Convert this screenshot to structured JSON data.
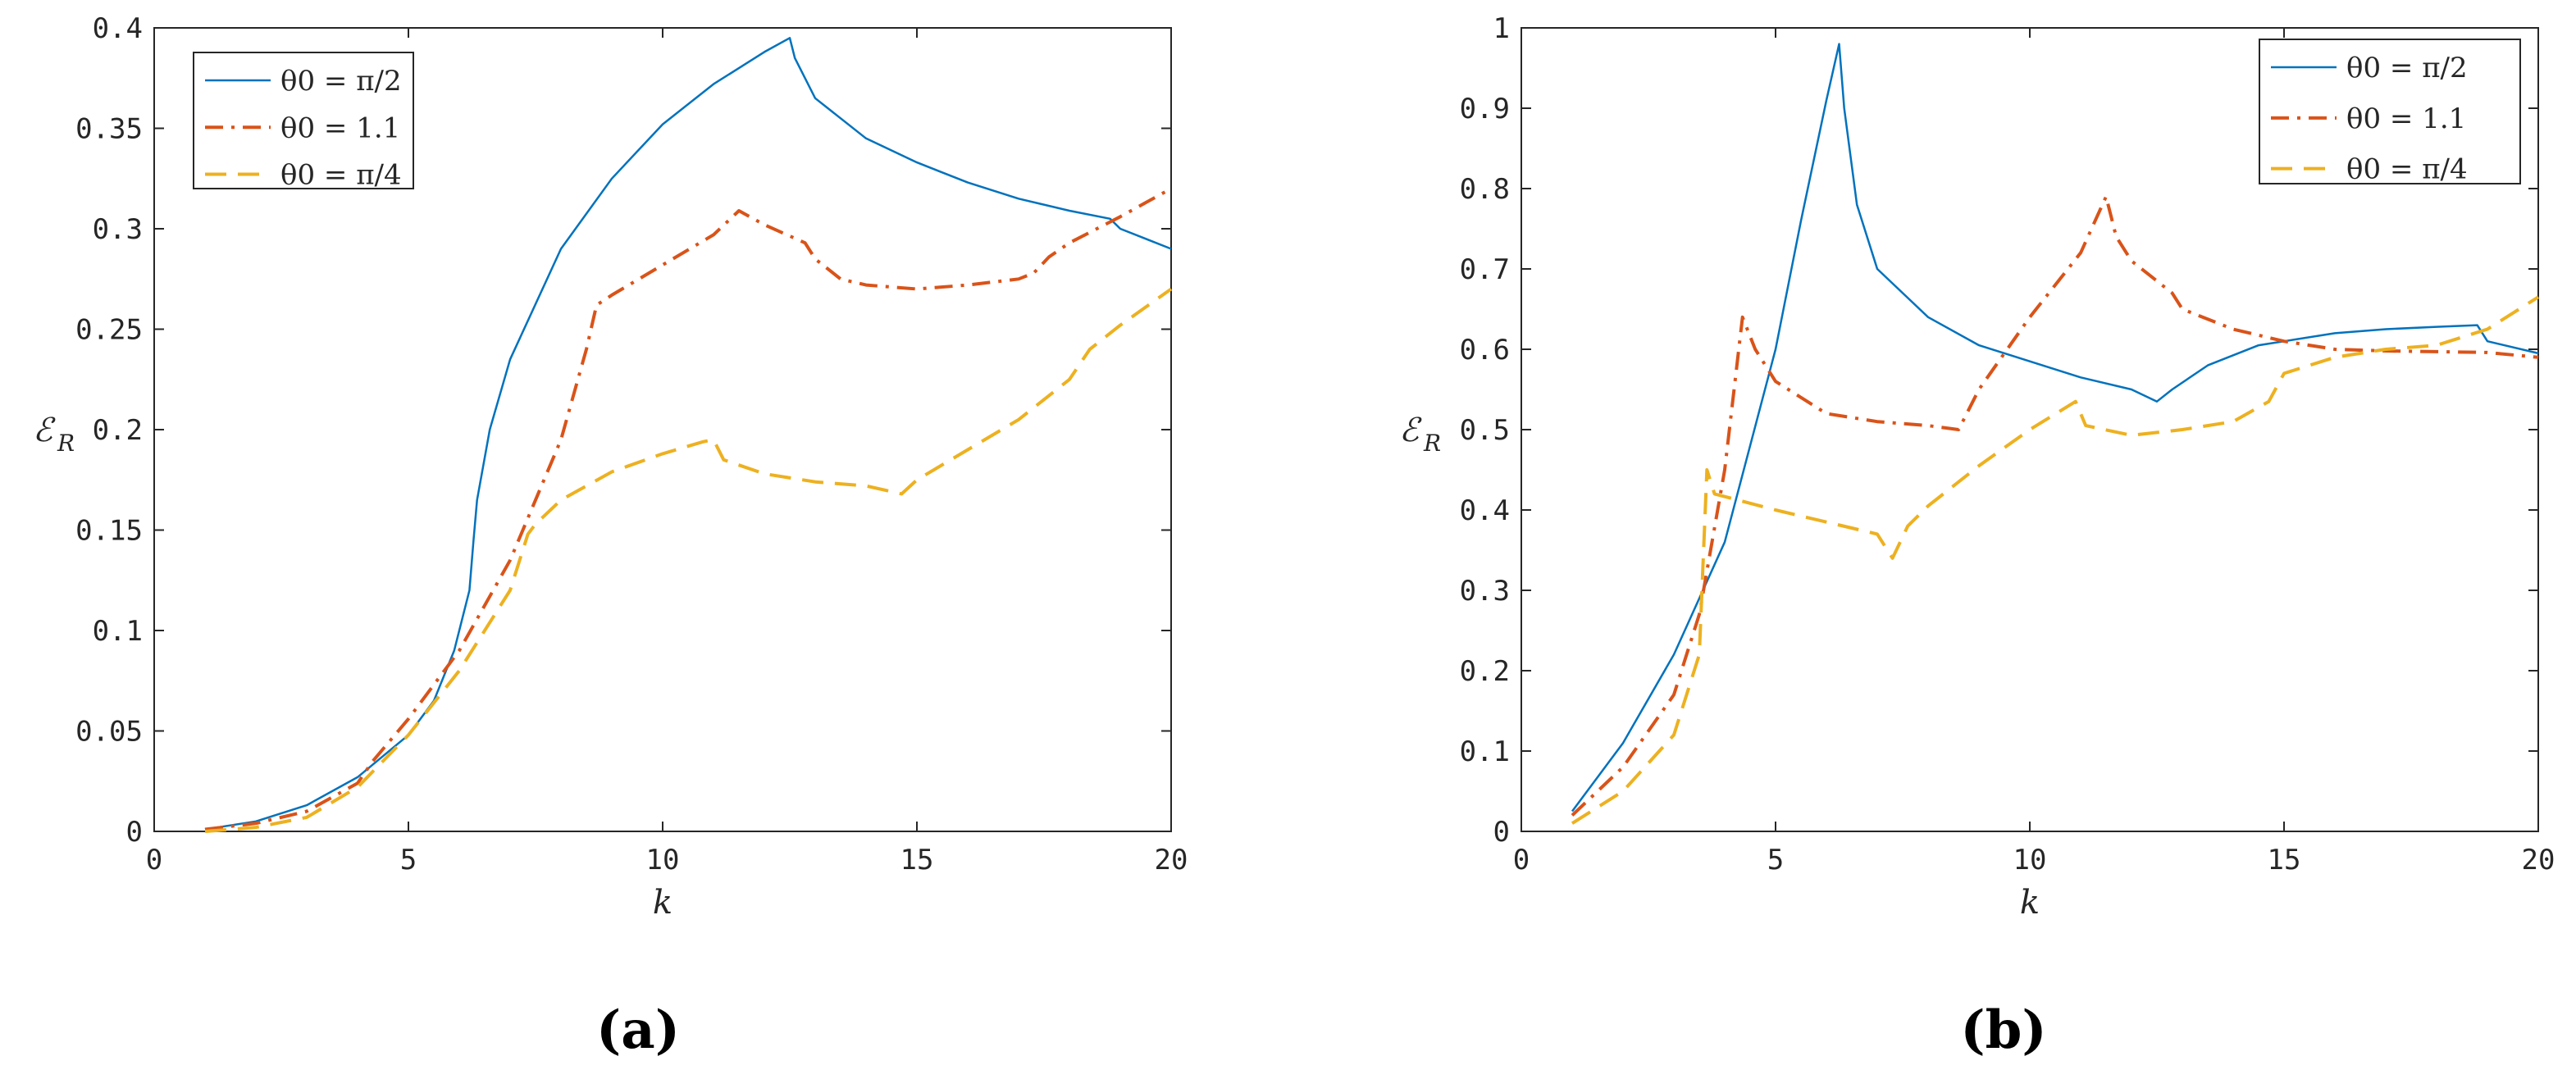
{
  "figure": {
    "panels": [
      {
        "label": "(a)",
        "ylabel_main": "ℰ",
        "ylabel_sub": "R",
        "xlabel": "k"
      },
      {
        "label": "(b)",
        "ylabel_main": "ℰ",
        "ylabel_sub": "R",
        "xlabel": "k"
      }
    ]
  },
  "chart_data": [
    {
      "type": "line",
      "panel": "(a)",
      "xlabel": "k",
      "ylabel": "ℰR",
      "xlim": [
        0,
        20
      ],
      "ylim": [
        0,
        0.4
      ],
      "xticks": [
        0,
        5,
        10,
        15,
        20
      ],
      "yticks": [
        0,
        0.05,
        0.1,
        0.15,
        0.2,
        0.25,
        0.3,
        0.35,
        0.4
      ],
      "xtick_labels": [
        "0",
        "5",
        "10",
        "15",
        "20"
      ],
      "ytick_labels": [
        "0",
        "0.05",
        "0.1",
        "0.15",
        "0.2",
        "0.25",
        "0.3",
        "0.35",
        "0.4"
      ],
      "grid": false,
      "legend_position": "top-left",
      "series": [
        {
          "name": "θ0 = π/2",
          "color": "#0072BD",
          "style": "solid",
          "points": [
            [
              1,
              0.001
            ],
            [
              2,
              0.005
            ],
            [
              3,
              0.013
            ],
            [
              4,
              0.027
            ],
            [
              5,
              0.048
            ],
            [
              5.5,
              0.065
            ],
            [
              5.9,
              0.09
            ],
            [
              6.2,
              0.12
            ],
            [
              6.28,
              0.145
            ],
            [
              6.35,
              0.165
            ],
            [
              6.6,
              0.2
            ],
            [
              7,
              0.235
            ],
            [
              8,
              0.29
            ],
            [
              9,
              0.325
            ],
            [
              10,
              0.352
            ],
            [
              11,
              0.372
            ],
            [
              12,
              0.388
            ],
            [
              12.5,
              0.395
            ],
            [
              12.6,
              0.385
            ],
            [
              13,
              0.365
            ],
            [
              14,
              0.345
            ],
            [
              15,
              0.333
            ],
            [
              16,
              0.323
            ],
            [
              17,
              0.315
            ],
            [
              18,
              0.309
            ],
            [
              18.8,
              0.305
            ],
            [
              19,
              0.3
            ],
            [
              20,
              0.29
            ]
          ]
        },
        {
          "name": "θ0 = 1.1",
          "color": "#D95319",
          "style": "dashdot",
          "points": [
            [
              1,
              0.001
            ],
            [
              2,
              0.004
            ],
            [
              3,
              0.01
            ],
            [
              4,
              0.024
            ],
            [
              4.3,
              0.035
            ],
            [
              5,
              0.056
            ],
            [
              6,
              0.09
            ],
            [
              7,
              0.135
            ],
            [
              8,
              0.195
            ],
            [
              8.5,
              0.24
            ],
            [
              8.7,
              0.262
            ],
            [
              9,
              0.267
            ],
            [
              10,
              0.282
            ],
            [
              11,
              0.297
            ],
            [
              11.5,
              0.309
            ],
            [
              12,
              0.302
            ],
            [
              12.8,
              0.293
            ],
            [
              13,
              0.285
            ],
            [
              13.5,
              0.275
            ],
            [
              14,
              0.272
            ],
            [
              15,
              0.27
            ],
            [
              16,
              0.272
            ],
            [
              17,
              0.275
            ],
            [
              17.3,
              0.278
            ],
            [
              17.6,
              0.286
            ],
            [
              18,
              0.293
            ],
            [
              19,
              0.306
            ],
            [
              20,
              0.32
            ]
          ]
        },
        {
          "name": "θ0 = π/4",
          "color": "#EDB120",
          "style": "dashed",
          "points": [
            [
              1,
              0.0
            ],
            [
              2,
              0.002
            ],
            [
              3,
              0.007
            ],
            [
              4,
              0.022
            ],
            [
              5,
              0.048
            ],
            [
              6,
              0.08
            ],
            [
              7,
              0.12
            ],
            [
              7.35,
              0.148
            ],
            [
              7.5,
              0.153
            ],
            [
              8,
              0.165
            ],
            [
              9,
              0.179
            ],
            [
              10,
              0.188
            ],
            [
              10.8,
              0.194
            ],
            [
              11,
              0.195
            ],
            [
              11.2,
              0.185
            ],
            [
              12,
              0.178
            ],
            [
              13,
              0.174
            ],
            [
              14,
              0.172
            ],
            [
              14.7,
              0.168
            ],
            [
              15,
              0.175
            ],
            [
              16,
              0.19
            ],
            [
              17,
              0.205
            ],
            [
              18,
              0.225
            ],
            [
              18.4,
              0.24
            ],
            [
              19,
              0.252
            ],
            [
              20,
              0.27
            ]
          ]
        }
      ]
    },
    {
      "type": "line",
      "panel": "(b)",
      "xlabel": "k",
      "ylabel": "ℰR",
      "xlim": [
        0,
        20
      ],
      "ylim": [
        0,
        1
      ],
      "xticks": [
        0,
        5,
        10,
        15,
        20
      ],
      "yticks": [
        0,
        0.1,
        0.2,
        0.3,
        0.4,
        0.5,
        0.6,
        0.7,
        0.8,
        0.9,
        1
      ],
      "xtick_labels": [
        "0",
        "5",
        "10",
        "15",
        "20"
      ],
      "ytick_labels": [
        "0",
        "0.1",
        "0.2",
        "0.3",
        "0.4",
        "0.5",
        "0.6",
        "0.7",
        "0.8",
        "0.9",
        "1"
      ],
      "grid": false,
      "legend_position": "top-right",
      "series": [
        {
          "name": "θ0 = π/2",
          "color": "#0072BD",
          "style": "solid",
          "points": [
            [
              1,
              0.025
            ],
            [
              2,
              0.11
            ],
            [
              3,
              0.22
            ],
            [
              4,
              0.36
            ],
            [
              5,
              0.6
            ],
            [
              5.5,
              0.76
            ],
            [
              6,
              0.91
            ],
            [
              6.25,
              0.98
            ],
            [
              6.35,
              0.9
            ],
            [
              6.6,
              0.78
            ],
            [
              7,
              0.7
            ],
            [
              8,
              0.64
            ],
            [
              9,
              0.605
            ],
            [
              10,
              0.585
            ],
            [
              11,
              0.565
            ],
            [
              12,
              0.55
            ],
            [
              12.5,
              0.535
            ],
            [
              12.8,
              0.55
            ],
            [
              13.5,
              0.58
            ],
            [
              14.5,
              0.605
            ],
            [
              16,
              0.62
            ],
            [
              17,
              0.625
            ],
            [
              18,
              0.628
            ],
            [
              18.8,
              0.63
            ],
            [
              19,
              0.61
            ],
            [
              20,
              0.595
            ]
          ]
        },
        {
          "name": "θ0 = 1.1",
          "color": "#D95319",
          "style": "dashdot",
          "points": [
            [
              1,
              0.02
            ],
            [
              2,
              0.08
            ],
            [
              3,
              0.17
            ],
            [
              3.5,
              0.27
            ],
            [
              4,
              0.45
            ],
            [
              4.35,
              0.64
            ],
            [
              4.6,
              0.6
            ],
            [
              5,
              0.56
            ],
            [
              6,
              0.52
            ],
            [
              7,
              0.51
            ],
            [
              8,
              0.505
            ],
            [
              8.6,
              0.5
            ],
            [
              9,
              0.55
            ],
            [
              10,
              0.64
            ],
            [
              11,
              0.72
            ],
            [
              11.5,
              0.79
            ],
            [
              11.7,
              0.74
            ],
            [
              12,
              0.71
            ],
            [
              12.8,
              0.67
            ],
            [
              13,
              0.65
            ],
            [
              14,
              0.625
            ],
            [
              15,
              0.61
            ],
            [
              16,
              0.6
            ],
            [
              17,
              0.598
            ],
            [
              18,
              0.597
            ],
            [
              19,
              0.596
            ],
            [
              20,
              0.59
            ]
          ]
        },
        {
          "name": "θ0 = π/4",
          "color": "#EDB120",
          "style": "dashed",
          "points": [
            [
              1,
              0.01
            ],
            [
              2,
              0.05
            ],
            [
              3,
              0.12
            ],
            [
              3.5,
              0.22
            ],
            [
              3.65,
              0.45
            ],
            [
              3.8,
              0.42
            ],
            [
              5,
              0.4
            ],
            [
              6,
              0.385
            ],
            [
              7,
              0.37
            ],
            [
              7.3,
              0.34
            ],
            [
              7.6,
              0.38
            ],
            [
              8,
              0.405
            ],
            [
              9,
              0.455
            ],
            [
              10,
              0.5
            ],
            [
              10.9,
              0.535
            ],
            [
              11.1,
              0.505
            ],
            [
              12,
              0.493
            ],
            [
              13,
              0.5
            ],
            [
              14,
              0.51
            ],
            [
              14.7,
              0.535
            ],
            [
              15,
              0.57
            ],
            [
              16,
              0.59
            ],
            [
              17,
              0.6
            ],
            [
              18,
              0.605
            ],
            [
              19,
              0.625
            ],
            [
              20,
              0.665
            ]
          ]
        }
      ]
    }
  ]
}
